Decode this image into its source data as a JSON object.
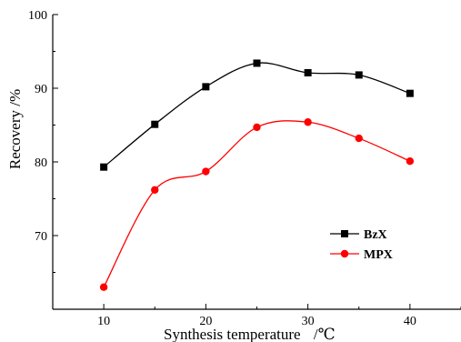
{
  "chart_data": {
    "type": "line",
    "title": "",
    "xlabel": "Synthesis temperature",
    "xlabel_unit": "/℃",
    "ylabel": "Recovery /%",
    "xlim": [
      5,
      45
    ],
    "ylim": [
      60,
      100
    ],
    "x_ticks": [
      10,
      20,
      30,
      40
    ],
    "y_ticks": [
      70,
      80,
      90,
      100
    ],
    "grid": false,
    "legend_position": "lower-right",
    "x": [
      10,
      15,
      20,
      25,
      30,
      35,
      40
    ],
    "series": [
      {
        "name": "BzX",
        "values": [
          79.3,
          85.1,
          90.2,
          93.4,
          92.1,
          91.8,
          89.3
        ],
        "color": "#000000",
        "marker": "square"
      },
      {
        "name": "MPX",
        "values": [
          63.0,
          76.2,
          78.7,
          84.7,
          85.4,
          83.2,
          80.1
        ],
        "color": "#ff0000",
        "marker": "circle"
      }
    ]
  }
}
